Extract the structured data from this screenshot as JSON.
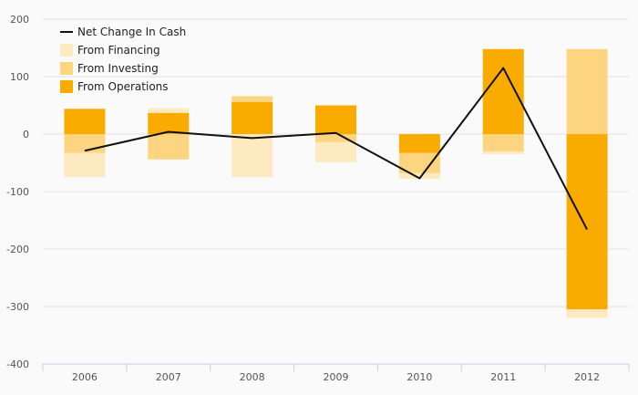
{
  "chart_data": {
    "type": "bar",
    "stacked": true,
    "categories": [
      "2006",
      "2007",
      "2008",
      "2009",
      "2010",
      "2011",
      "2012"
    ],
    "ylim": [
      -400,
      200
    ],
    "yticks": [
      200,
      100,
      0,
      -100,
      -200,
      -300,
      -400
    ],
    "grid": true,
    "legend_position": "top-left",
    "series": [
      {
        "name": "From Operations",
        "kind": "bar",
        "color": "#f9ab00",
        "values": [
          44,
          37,
          56,
          50,
          -33,
          148,
          -305
        ]
      },
      {
        "name": "From Investing",
        "kind": "bar",
        "color": "#fdd47f",
        "values": [
          -33,
          -44,
          10,
          -14,
          -35,
          -30,
          148
        ]
      },
      {
        "name": "From Financing",
        "kind": "bar",
        "color": "#feeac0",
        "values": [
          -42,
          8,
          -75,
          -35,
          -10,
          -5,
          -15
        ]
      },
      {
        "name": "Net Change In Cash",
        "kind": "line",
        "color": "#111111",
        "values": [
          -29,
          4,
          -7,
          2,
          -77,
          115,
          -166
        ]
      }
    ],
    "legend_order": [
      "Net Change In Cash",
      "From Financing",
      "From Investing",
      "From Operations"
    ]
  }
}
